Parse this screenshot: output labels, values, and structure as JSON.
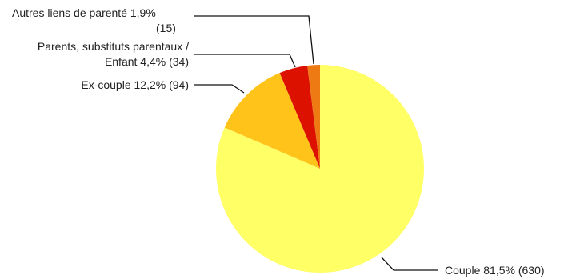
{
  "chart_data": {
    "type": "pie",
    "title": "",
    "slices": [
      {
        "name": "Couple",
        "percent_label": "81,5%",
        "count_label": "(630)",
        "value": 630,
        "color": "#ffff66"
      },
      {
        "name": "Ex-couple",
        "percent_label": "12,2%",
        "count_label": "(94)",
        "value": 94,
        "color": "#ffc31a"
      },
      {
        "name": "Parents, substituts parentaux / Enfant",
        "percent_label": "4,4%",
        "count_label": "(34)",
        "value": 34,
        "color": "#dd1100"
      },
      {
        "name": "Autres liens de parenté",
        "percent_label": "1,9%",
        "count_label": "(15)",
        "value": 15,
        "color": "#ee7a14"
      }
    ],
    "labels": {
      "couple": "Couple 81,5% (630)",
      "ex_couple": "Ex-couple 12,2% (94)",
      "parents_line1": "Parents, substituts parentaux /",
      "parents_line2": "Enfant 4,4% (34)",
      "autres_line1": "Autres liens de parenté 1,9%",
      "autres_line2": "(15)"
    }
  }
}
